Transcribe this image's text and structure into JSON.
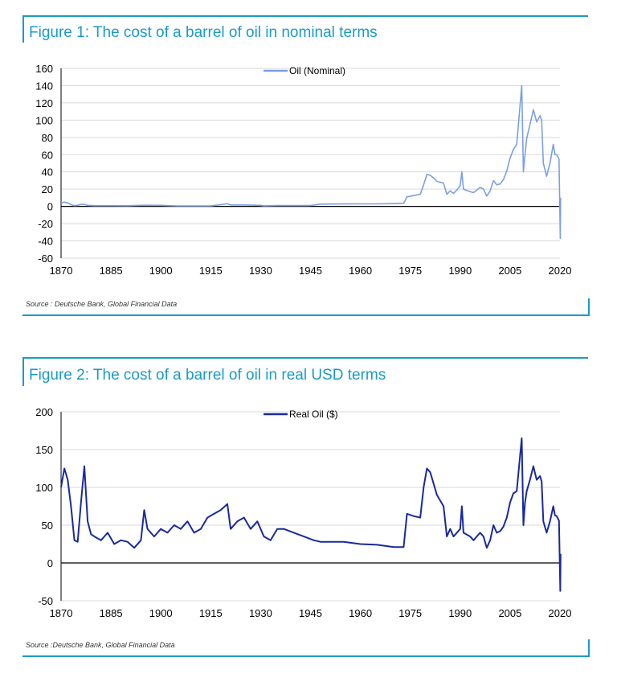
{
  "charts": [
    {
      "id": "fig1",
      "title": "Figure 1: The cost of a barrel of oil in nominal terms",
      "source": "Source : Deutsche Bank, Global Financial Data",
      "legend": "Oil (Nominal)",
      "line_color": "#7b9fe6"
    },
    {
      "id": "fig2",
      "title": "Figure 2: The cost of a barrel of oil in real USD terms",
      "source": "Source :Deutsche Bank, Global Financial Data",
      "legend": "Real Oil ($)",
      "line_color": "#1a2a9c"
    }
  ],
  "chart_data": [
    {
      "type": "line",
      "title": "Figure 1: The cost of a barrel of oil in nominal terms",
      "xlim": [
        1870,
        2020
      ],
      "ylim": [
        -60,
        160
      ],
      "xticks": [
        1870,
        1885,
        1900,
        1915,
        1930,
        1945,
        1960,
        1975,
        1990,
        2005,
        2020
      ],
      "yticks": [
        -60,
        -40,
        -20,
        0,
        20,
        40,
        60,
        80,
        100,
        120,
        140,
        160
      ],
      "grid": "horizontal",
      "legend_position": "top-center",
      "series": [
        {
          "name": "Oil (Nominal)",
          "color": "#7b9fe6",
          "points": [
            [
              1870,
              4
            ],
            [
              1871,
              5
            ],
            [
              1872,
              4
            ],
            [
              1873,
              2
            ],
            [
              1874,
              1
            ],
            [
              1875,
              1.2
            ],
            [
              1876,
              2.5
            ],
            [
              1877,
              2.4
            ],
            [
              1878,
              1.2
            ],
            [
              1880,
              0.9
            ],
            [
              1885,
              0.9
            ],
            [
              1890,
              0.8
            ],
            [
              1895,
              1.3
            ],
            [
              1900,
              1.2
            ],
            [
              1905,
              0.6
            ],
            [
              1910,
              0.6
            ],
            [
              1915,
              0.6
            ],
            [
              1918,
              2
            ],
            [
              1920,
              3.1
            ],
            [
              1921,
              1.7
            ],
            [
              1925,
              1.7
            ],
            [
              1930,
              1.2
            ],
            [
              1931,
              0.7
            ],
            [
              1935,
              1
            ],
            [
              1940,
              1
            ],
            [
              1945,
              1.1
            ],
            [
              1948,
              2.6
            ],
            [
              1955,
              2.8
            ],
            [
              1960,
              2.9
            ],
            [
              1965,
              2.9
            ],
            [
              1970,
              3.2
            ],
            [
              1973,
              3.6
            ],
            [
              1974,
              11
            ],
            [
              1976,
              12.5
            ],
            [
              1978,
              14
            ],
            [
              1979,
              25
            ],
            [
              1980,
              37
            ],
            [
              1981,
              36
            ],
            [
              1982,
              33
            ],
            [
              1983,
              29
            ],
            [
              1985,
              27
            ],
            [
              1986,
              14
            ],
            [
              1987,
              18
            ],
            [
              1988,
              15
            ],
            [
              1989,
              19
            ],
            [
              1990,
              24
            ],
            [
              1990.5,
              40
            ],
            [
              1991,
              20
            ],
            [
              1993,
              17
            ],
            [
              1994,
              16
            ],
            [
              1996,
              22
            ],
            [
              1997,
              20
            ],
            [
              1998,
              12
            ],
            [
              1999,
              18
            ],
            [
              2000,
              30
            ],
            [
              2001,
              25
            ],
            [
              2002,
              26
            ],
            [
              2003,
              31
            ],
            [
              2004,
              41
            ],
            [
              2005,
              56
            ],
            [
              2006,
              66
            ],
            [
              2007,
              72
            ],
            [
              2008.5,
              140
            ],
            [
              2009,
              40
            ],
            [
              2009.5,
              60
            ],
            [
              2010,
              79
            ],
            [
              2011,
              95
            ],
            [
              2012,
              112
            ],
            [
              2013,
              98
            ],
            [
              2014,
              105
            ],
            [
              2014.5,
              100
            ],
            [
              2015,
              50
            ],
            [
              2016,
              35
            ],
            [
              2017,
              50
            ],
            [
              2018,
              72
            ],
            [
              2018.5,
              60
            ],
            [
              2019,
              60
            ],
            [
              2019.7,
              55
            ],
            [
              2020.1,
              -37
            ],
            [
              2020.2,
              10
            ]
          ]
        }
      ]
    },
    {
      "type": "line",
      "title": "Figure 2: The cost of a barrel of oil in real USD terms",
      "xlim": [
        1870,
        2020
      ],
      "ylim": [
        -50,
        200
      ],
      "xticks": [
        1870,
        1885,
        1900,
        1915,
        1930,
        1945,
        1960,
        1975,
        1990,
        2005,
        2020
      ],
      "yticks": [
        -50,
        0,
        50,
        100,
        150,
        200
      ],
      "grid": "horizontal",
      "legend_position": "top-center",
      "series": [
        {
          "name": "Real Oil ($)",
          "color": "#1a2a9c",
          "points": [
            [
              1870,
              100
            ],
            [
              1871,
              125
            ],
            [
              1872,
              110
            ],
            [
              1873,
              75
            ],
            [
              1874,
              30
            ],
            [
              1875,
              28
            ],
            [
              1876,
              80
            ],
            [
              1877,
              128
            ],
            [
              1878,
              55
            ],
            [
              1879,
              38
            ],
            [
              1880,
              35
            ],
            [
              1882,
              30
            ],
            [
              1884,
              40
            ],
            [
              1886,
              25
            ],
            [
              1888,
              30
            ],
            [
              1890,
              28
            ],
            [
              1892,
              20
            ],
            [
              1894,
              30
            ],
            [
              1895,
              70
            ],
            [
              1896,
              45
            ],
            [
              1898,
              35
            ],
            [
              1900,
              45
            ],
            [
              1902,
              40
            ],
            [
              1904,
              50
            ],
            [
              1906,
              45
            ],
            [
              1908,
              55
            ],
            [
              1910,
              40
            ],
            [
              1912,
              45
            ],
            [
              1914,
              60
            ],
            [
              1916,
              65
            ],
            [
              1918,
              70
            ],
            [
              1920,
              78
            ],
            [
              1921,
              45
            ],
            [
              1923,
              55
            ],
            [
              1925,
              60
            ],
            [
              1927,
              45
            ],
            [
              1929,
              55
            ],
            [
              1931,
              35
            ],
            [
              1933,
              30
            ],
            [
              1935,
              45
            ],
            [
              1937,
              45
            ],
            [
              1940,
              40
            ],
            [
              1943,
              35
            ],
            [
              1946,
              30
            ],
            [
              1948,
              28
            ],
            [
              1952,
              28
            ],
            [
              1955,
              28
            ],
            [
              1960,
              25
            ],
            [
              1965,
              24
            ],
            [
              1970,
              21
            ],
            [
              1973,
              21
            ],
            [
              1974,
              65
            ],
            [
              1976,
              62
            ],
            [
              1978,
              60
            ],
            [
              1979,
              100
            ],
            [
              1980,
              125
            ],
            [
              1981,
              120
            ],
            [
              1982,
              105
            ],
            [
              1983,
              90
            ],
            [
              1985,
              75
            ],
            [
              1986,
              35
            ],
            [
              1987,
              45
            ],
            [
              1988,
              35
            ],
            [
              1989,
              40
            ],
            [
              1990,
              45
            ],
            [
              1990.5,
              75
            ],
            [
              1991,
              40
            ],
            [
              1993,
              35
            ],
            [
              1994,
              30
            ],
            [
              1996,
              40
            ],
            [
              1997,
              35
            ],
            [
              1998,
              20
            ],
            [
              1999,
              30
            ],
            [
              2000,
              50
            ],
            [
              2001,
              40
            ],
            [
              2002,
              42
            ],
            [
              2003,
              48
            ],
            [
              2004,
              60
            ],
            [
              2005,
              80
            ],
            [
              2006,
              92
            ],
            [
              2007,
              95
            ],
            [
              2008.5,
              165
            ],
            [
              2009,
              50
            ],
            [
              2009.5,
              80
            ],
            [
              2010,
              95
            ],
            [
              2011,
              110
            ],
            [
              2012,
              128
            ],
            [
              2013,
              110
            ],
            [
              2014,
              115
            ],
            [
              2014.5,
              108
            ],
            [
              2015,
              55
            ],
            [
              2016,
              40
            ],
            [
              2017,
              55
            ],
            [
              2018,
              75
            ],
            [
              2018.5,
              63
            ],
            [
              2019,
              62
            ],
            [
              2019.7,
              56
            ],
            [
              2020.1,
              -37
            ],
            [
              2020.2,
              12
            ]
          ]
        }
      ]
    }
  ]
}
